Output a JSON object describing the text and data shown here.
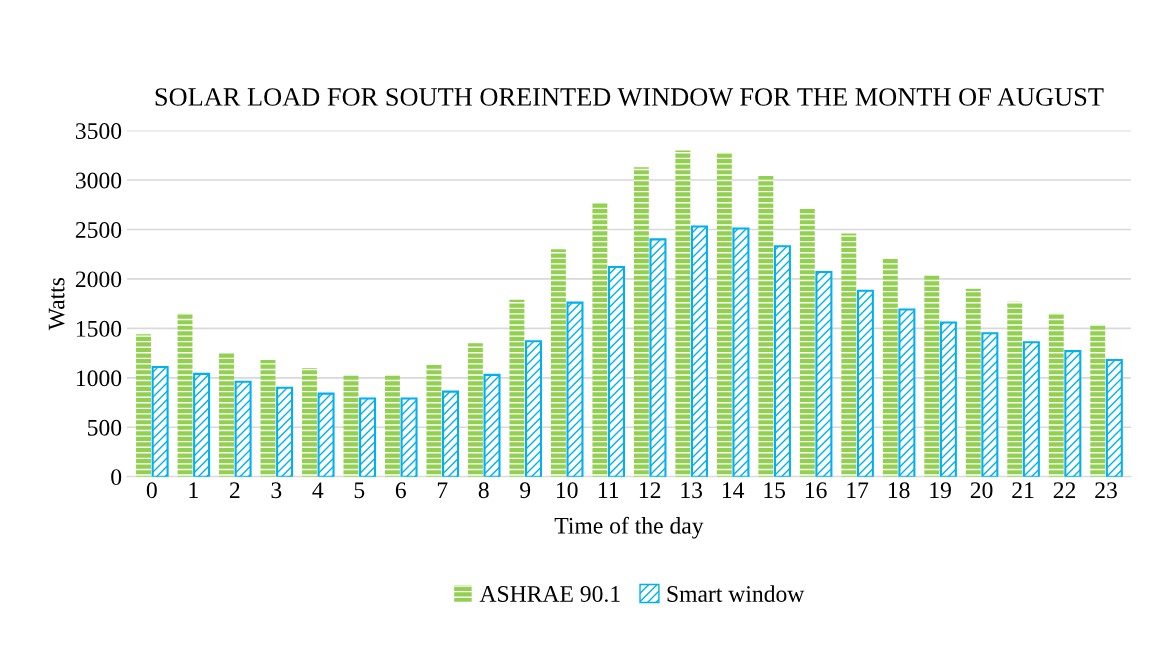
{
  "chart_data": {
    "type": "bar",
    "title": "SOLAR LOAD FOR SOUTH OREINTED WINDOW FOR THE MONTH OF AUGUST",
    "xlabel": "Time of the day",
    "ylabel": "Watts",
    "categories": [
      "0",
      "1",
      "2",
      "3",
      "4",
      "5",
      "6",
      "7",
      "8",
      "9",
      "10",
      "11",
      "12",
      "13",
      "14",
      "15",
      "16",
      "17",
      "18",
      "19",
      "20",
      "21",
      "22",
      "23"
    ],
    "series": [
      {
        "name": "ASHRAE 90.1",
        "color": "#92d050",
        "values": [
          1440,
          1650,
          1260,
          1180,
          1100,
          1030,
          1030,
          1130,
          1350,
          1790,
          2300,
          2770,
          3130,
          3300,
          3270,
          3040,
          2710,
          2460,
          2210,
          2040,
          1900,
          1770,
          1650,
          1540
        ]
      },
      {
        "name": "Smart window",
        "color": "#00b0f0",
        "values": [
          1110,
          1040,
          960,
          900,
          840,
          790,
          790,
          860,
          1030,
          1370,
          1760,
          2120,
          2400,
          2530,
          2510,
          2330,
          2070,
          1880,
          1690,
          1560,
          1450,
          1360,
          1270,
          1180
        ]
      }
    ],
    "ylim": [
      0,
      3500
    ],
    "yticks": [
      0,
      500,
      1000,
      1500,
      2000,
      2500,
      3000,
      3500
    ],
    "grid": "y",
    "legend": "bottom"
  }
}
